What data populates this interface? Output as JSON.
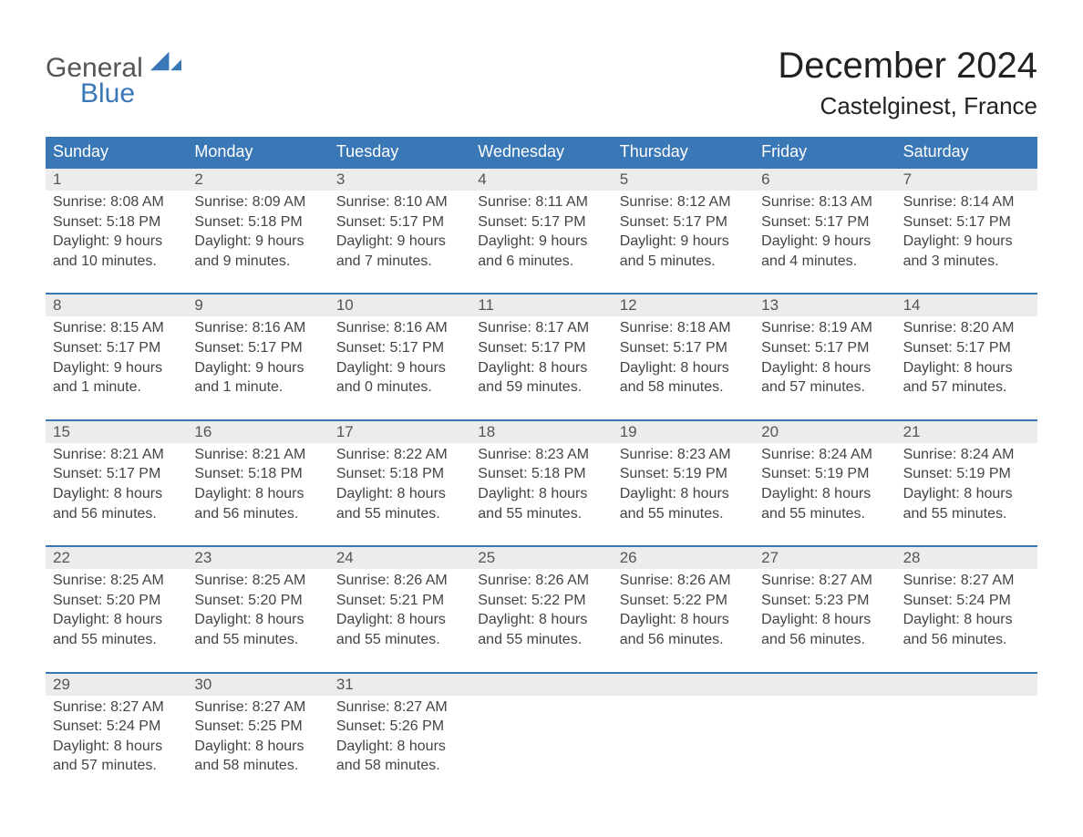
{
  "colors": {
    "header_blue": "#3a77b7",
    "daynum_bg": "#ececec",
    "week_border": "#3a77b7",
    "text_dark": "#444444",
    "text_muted": "#666666",
    "background": "#ffffff"
  },
  "logo": {
    "general": "General",
    "blue": "Blue"
  },
  "title": "December 2024",
  "location": "Castelginest, France",
  "day_names": [
    "Sunday",
    "Monday",
    "Tuesday",
    "Wednesday",
    "Thursday",
    "Friday",
    "Saturday"
  ],
  "layout": {
    "columns": 7,
    "rows": 5,
    "daynum_fontsize": 17,
    "body_fontsize": 16,
    "header_fontsize": 18,
    "title_fontsize": 40,
    "location_fontsize": 26
  },
  "weeks": [
    [
      {
        "n": "1",
        "sunrise": "Sunrise: 8:08 AM",
        "sunset": "Sunset: 5:18 PM",
        "day1": "Daylight: 9 hours",
        "day2": "and 10 minutes."
      },
      {
        "n": "2",
        "sunrise": "Sunrise: 8:09 AM",
        "sunset": "Sunset: 5:18 PM",
        "day1": "Daylight: 9 hours",
        "day2": "and 9 minutes."
      },
      {
        "n": "3",
        "sunrise": "Sunrise: 8:10 AM",
        "sunset": "Sunset: 5:17 PM",
        "day1": "Daylight: 9 hours",
        "day2": "and 7 minutes."
      },
      {
        "n": "4",
        "sunrise": "Sunrise: 8:11 AM",
        "sunset": "Sunset: 5:17 PM",
        "day1": "Daylight: 9 hours",
        "day2": "and 6 minutes."
      },
      {
        "n": "5",
        "sunrise": "Sunrise: 8:12 AM",
        "sunset": "Sunset: 5:17 PM",
        "day1": "Daylight: 9 hours",
        "day2": "and 5 minutes."
      },
      {
        "n": "6",
        "sunrise": "Sunrise: 8:13 AM",
        "sunset": "Sunset: 5:17 PM",
        "day1": "Daylight: 9 hours",
        "day2": "and 4 minutes."
      },
      {
        "n": "7",
        "sunrise": "Sunrise: 8:14 AM",
        "sunset": "Sunset: 5:17 PM",
        "day1": "Daylight: 9 hours",
        "day2": "and 3 minutes."
      }
    ],
    [
      {
        "n": "8",
        "sunrise": "Sunrise: 8:15 AM",
        "sunset": "Sunset: 5:17 PM",
        "day1": "Daylight: 9 hours",
        "day2": "and 1 minute."
      },
      {
        "n": "9",
        "sunrise": "Sunrise: 8:16 AM",
        "sunset": "Sunset: 5:17 PM",
        "day1": "Daylight: 9 hours",
        "day2": "and 1 minute."
      },
      {
        "n": "10",
        "sunrise": "Sunrise: 8:16 AM",
        "sunset": "Sunset: 5:17 PM",
        "day1": "Daylight: 9 hours",
        "day2": "and 0 minutes."
      },
      {
        "n": "11",
        "sunrise": "Sunrise: 8:17 AM",
        "sunset": "Sunset: 5:17 PM",
        "day1": "Daylight: 8 hours",
        "day2": "and 59 minutes."
      },
      {
        "n": "12",
        "sunrise": "Sunrise: 8:18 AM",
        "sunset": "Sunset: 5:17 PM",
        "day1": "Daylight: 8 hours",
        "day2": "and 58 minutes."
      },
      {
        "n": "13",
        "sunrise": "Sunrise: 8:19 AM",
        "sunset": "Sunset: 5:17 PM",
        "day1": "Daylight: 8 hours",
        "day2": "and 57 minutes."
      },
      {
        "n": "14",
        "sunrise": "Sunrise: 8:20 AM",
        "sunset": "Sunset: 5:17 PM",
        "day1": "Daylight: 8 hours",
        "day2": "and 57 minutes."
      }
    ],
    [
      {
        "n": "15",
        "sunrise": "Sunrise: 8:21 AM",
        "sunset": "Sunset: 5:17 PM",
        "day1": "Daylight: 8 hours",
        "day2": "and 56 minutes."
      },
      {
        "n": "16",
        "sunrise": "Sunrise: 8:21 AM",
        "sunset": "Sunset: 5:18 PM",
        "day1": "Daylight: 8 hours",
        "day2": "and 56 minutes."
      },
      {
        "n": "17",
        "sunrise": "Sunrise: 8:22 AM",
        "sunset": "Sunset: 5:18 PM",
        "day1": "Daylight: 8 hours",
        "day2": "and 55 minutes."
      },
      {
        "n": "18",
        "sunrise": "Sunrise: 8:23 AM",
        "sunset": "Sunset: 5:18 PM",
        "day1": "Daylight: 8 hours",
        "day2": "and 55 minutes."
      },
      {
        "n": "19",
        "sunrise": "Sunrise: 8:23 AM",
        "sunset": "Sunset: 5:19 PM",
        "day1": "Daylight: 8 hours",
        "day2": "and 55 minutes."
      },
      {
        "n": "20",
        "sunrise": "Sunrise: 8:24 AM",
        "sunset": "Sunset: 5:19 PM",
        "day1": "Daylight: 8 hours",
        "day2": "and 55 minutes."
      },
      {
        "n": "21",
        "sunrise": "Sunrise: 8:24 AM",
        "sunset": "Sunset: 5:19 PM",
        "day1": "Daylight: 8 hours",
        "day2": "and 55 minutes."
      }
    ],
    [
      {
        "n": "22",
        "sunrise": "Sunrise: 8:25 AM",
        "sunset": "Sunset: 5:20 PM",
        "day1": "Daylight: 8 hours",
        "day2": "and 55 minutes."
      },
      {
        "n": "23",
        "sunrise": "Sunrise: 8:25 AM",
        "sunset": "Sunset: 5:20 PM",
        "day1": "Daylight: 8 hours",
        "day2": "and 55 minutes."
      },
      {
        "n": "24",
        "sunrise": "Sunrise: 8:26 AM",
        "sunset": "Sunset: 5:21 PM",
        "day1": "Daylight: 8 hours",
        "day2": "and 55 minutes."
      },
      {
        "n": "25",
        "sunrise": "Sunrise: 8:26 AM",
        "sunset": "Sunset: 5:22 PM",
        "day1": "Daylight: 8 hours",
        "day2": "and 55 minutes."
      },
      {
        "n": "26",
        "sunrise": "Sunrise: 8:26 AM",
        "sunset": "Sunset: 5:22 PM",
        "day1": "Daylight: 8 hours",
        "day2": "and 56 minutes."
      },
      {
        "n": "27",
        "sunrise": "Sunrise: 8:27 AM",
        "sunset": "Sunset: 5:23 PM",
        "day1": "Daylight: 8 hours",
        "day2": "and 56 minutes."
      },
      {
        "n": "28",
        "sunrise": "Sunrise: 8:27 AM",
        "sunset": "Sunset: 5:24 PM",
        "day1": "Daylight: 8 hours",
        "day2": "and 56 minutes."
      }
    ],
    [
      {
        "n": "29",
        "sunrise": "Sunrise: 8:27 AM",
        "sunset": "Sunset: 5:24 PM",
        "day1": "Daylight: 8 hours",
        "day2": "and 57 minutes."
      },
      {
        "n": "30",
        "sunrise": "Sunrise: 8:27 AM",
        "sunset": "Sunset: 5:25 PM",
        "day1": "Daylight: 8 hours",
        "day2": "and 58 minutes."
      },
      {
        "n": "31",
        "sunrise": "Sunrise: 8:27 AM",
        "sunset": "Sunset: 5:26 PM",
        "day1": "Daylight: 8 hours",
        "day2": "and 58 minutes."
      },
      null,
      null,
      null,
      null
    ]
  ]
}
